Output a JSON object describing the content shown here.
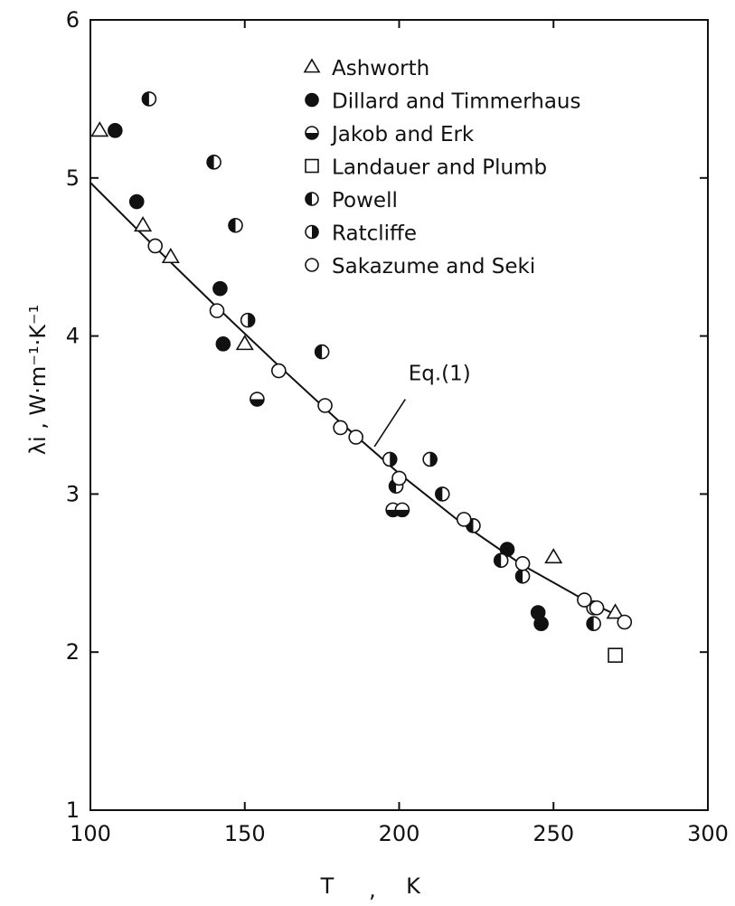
{
  "chart_data": {
    "type": "scatter",
    "xlabel": "T , K",
    "ylabel": "λi , W·m⁻¹·K⁻¹",
    "xlim": [
      100,
      300
    ],
    "ylim": [
      1,
      6
    ],
    "x_ticks": [
      100,
      150,
      200,
      250,
      300
    ],
    "y_ticks": [
      1,
      2,
      3,
      4,
      5,
      6
    ],
    "grid": false,
    "legend_position": "top-center",
    "series": [
      {
        "name": "Ashworth",
        "marker": "triangle-open",
        "points": [
          [
            103,
            5.3
          ],
          [
            117,
            4.7
          ],
          [
            126,
            4.5
          ],
          [
            150,
            3.95
          ],
          [
            250,
            2.6
          ],
          [
            270,
            2.25
          ]
        ]
      },
      {
        "name": "Dillard and Timmerhaus",
        "marker": "circle-filled",
        "points": [
          [
            108,
            5.3
          ],
          [
            115,
            4.85
          ],
          [
            142,
            4.3
          ],
          [
            143,
            3.95
          ],
          [
            235,
            2.65
          ],
          [
            245,
            2.25
          ],
          [
            246,
            2.18
          ]
        ]
      },
      {
        "name": "Jakob and Erk",
        "marker": "circle-half-bottom",
        "points": [
          [
            154,
            3.6
          ],
          [
            198,
            2.9
          ],
          [
            201,
            2.9
          ]
        ]
      },
      {
        "name": "Landauer and Plumb",
        "marker": "square-open",
        "points": [
          [
            270,
            1.98
          ]
        ]
      },
      {
        "name": "Powell",
        "marker": "circle-half-left",
        "points": [
          [
            119,
            5.5
          ],
          [
            140,
            5.1
          ],
          [
            147,
            4.7
          ],
          [
            175,
            3.9
          ],
          [
            199,
            3.05
          ],
          [
            214,
            3.0
          ],
          [
            224,
            2.8
          ],
          [
            233,
            2.58
          ],
          [
            240,
            2.48
          ],
          [
            263,
            2.18
          ]
        ]
      },
      {
        "name": "Ratcliffe",
        "marker": "circle-half-right",
        "points": [
          [
            151,
            4.1
          ],
          [
            197,
            3.22
          ],
          [
            210,
            3.22
          ],
          [
            263,
            2.28
          ]
        ]
      },
      {
        "name": "Sakazume and Seki",
        "marker": "circle-open",
        "points": [
          [
            121,
            4.57
          ],
          [
            141,
            4.16
          ],
          [
            161,
            3.78
          ],
          [
            176,
            3.56
          ],
          [
            181,
            3.42
          ],
          [
            186,
            3.36
          ],
          [
            200,
            3.1
          ],
          [
            221,
            2.84
          ],
          [
            240,
            2.56
          ],
          [
            260,
            2.33
          ],
          [
            264,
            2.28
          ],
          [
            273,
            2.19
          ]
        ]
      }
    ],
    "fit_line": {
      "label": "Eq.(1)",
      "points": [
        [
          100,
          4.97
        ],
        [
          120,
          4.58
        ],
        [
          140,
          4.2
        ],
        [
          160,
          3.83
        ],
        [
          180,
          3.47
        ],
        [
          200,
          3.13
        ],
        [
          220,
          2.82
        ],
        [
          240,
          2.55
        ],
        [
          260,
          2.33
        ],
        [
          272,
          2.22
        ]
      ]
    }
  }
}
